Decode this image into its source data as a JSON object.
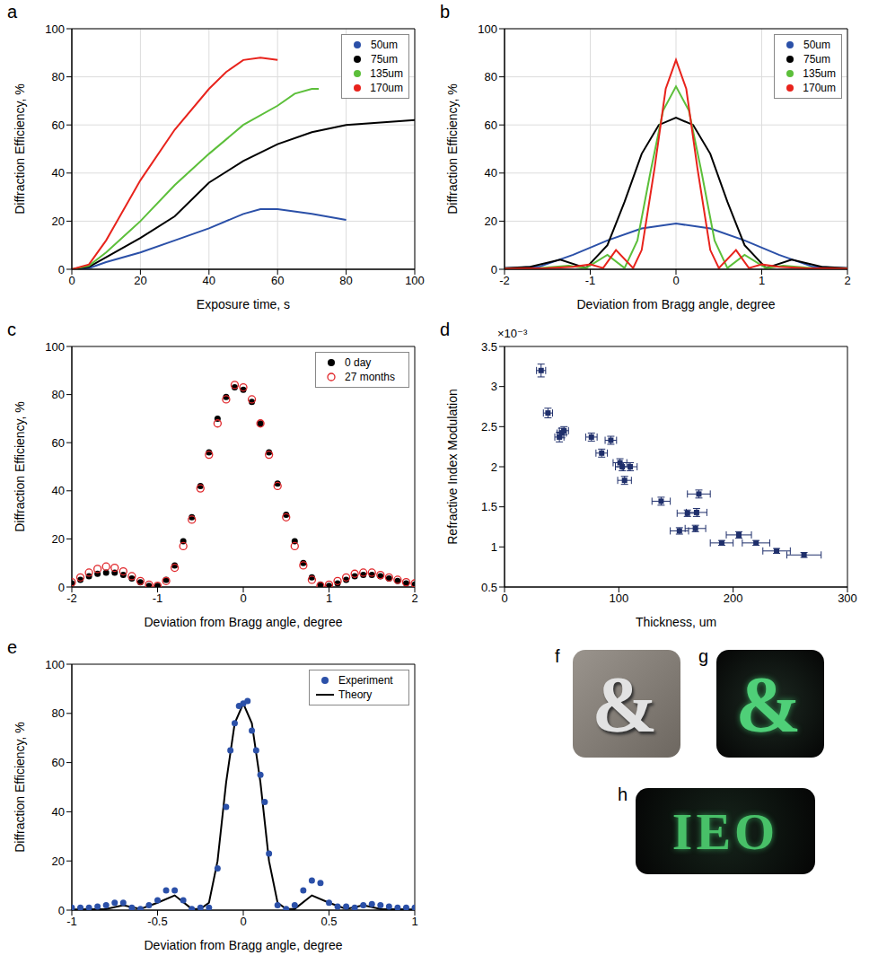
{
  "chart_data": [
    {
      "panel": "a",
      "type": "line",
      "x_label": "Exposure time, s",
      "y_label": "Diffraction Efficiency, %",
      "xlim": [
        0,
        100
      ],
      "xticks": [
        0,
        20,
        40,
        60,
        80,
        100
      ],
      "ylim": [
        0,
        100
      ],
      "yticks": [
        0,
        20,
        40,
        60,
        80,
        100
      ],
      "grid": true,
      "legend": "upper right",
      "series": [
        {
          "name": "50um",
          "color": "#2b50a8",
          "x": [
            0,
            5,
            10,
            20,
            30,
            40,
            50,
            55,
            60,
            70,
            80
          ],
          "values": [
            0,
            0.5,
            3,
            7,
            12,
            17,
            23,
            25,
            25,
            23,
            20.5
          ]
        },
        {
          "name": "75um",
          "color": "#000000",
          "x": [
            0,
            5,
            10,
            20,
            30,
            40,
            50,
            60,
            70,
            80,
            90,
            100
          ],
          "values": [
            0,
            1,
            5,
            13,
            22,
            36,
            45,
            52,
            57,
            60,
            61,
            62
          ]
        },
        {
          "name": "135um",
          "color": "#5cbf3a",
          "x": [
            0,
            5,
            10,
            20,
            30,
            40,
            50,
            60,
            65,
            70,
            72
          ],
          "values": [
            0,
            1.5,
            7,
            20,
            35,
            48,
            60,
            68,
            73,
            75,
            75
          ]
        },
        {
          "name": "170um",
          "color": "#e8231c",
          "x": [
            0,
            5,
            10,
            20,
            30,
            40,
            45,
            50,
            55,
            60
          ],
          "values": [
            0,
            2,
            12,
            37,
            58,
            75,
            82,
            87,
            88,
            87
          ]
        }
      ]
    },
    {
      "panel": "b",
      "type": "line",
      "x_label": "Deviation from Bragg angle, degree",
      "y_label": "Diffraction Efficiency, %",
      "xlim": [
        -2,
        2
      ],
      "xticks": [
        -2,
        -1,
        0,
        1,
        2
      ],
      "ylim": [
        0,
        100
      ],
      "yticks": [
        0,
        20,
        40,
        60,
        80,
        100
      ],
      "grid": true,
      "legend": "upper right",
      "series": [
        {
          "name": "50um",
          "color": "#2b50a8",
          "x": [
            -2,
            -1.6,
            -1.2,
            -0.8,
            -0.4,
            0,
            0.4,
            0.8,
            1.2,
            1.6,
            2
          ],
          "values": [
            0.5,
            1,
            6,
            12,
            17,
            19,
            17,
            12,
            6,
            1,
            0.5
          ]
        },
        {
          "name": "75um",
          "color": "#000000",
          "x": [
            -2,
            -1.7,
            -1.35,
            -1.05,
            -0.8,
            -0.6,
            -0.4,
            -0.2,
            0,
            0.2,
            0.4,
            0.6,
            0.8,
            1.05,
            1.35,
            1.7,
            2
          ],
          "values": [
            0.5,
            1,
            4,
            0.5,
            10,
            28,
            48,
            60,
            63,
            60,
            48,
            28,
            10,
            0.5,
            4,
            1,
            0.5
          ]
        },
        {
          "name": "135um",
          "color": "#5cbf3a",
          "x": [
            -2,
            -1.6,
            -1.25,
            -1.05,
            -0.8,
            -0.6,
            -0.45,
            -0.3,
            -0.15,
            0,
            0.15,
            0.3,
            0.45,
            0.6,
            0.8,
            1.05,
            1.25,
            1.6,
            2
          ],
          "values": [
            0.3,
            0.5,
            1.5,
            0.5,
            6,
            0.5,
            12,
            40,
            66,
            76,
            66,
            40,
            12,
            0.5,
            6,
            0.5,
            1.5,
            0.5,
            0.3
          ]
        },
        {
          "name": "170um",
          "color": "#e8231c",
          "x": [
            -2,
            -1.5,
            -1.2,
            -1,
            -0.85,
            -0.7,
            -0.5,
            -0.4,
            -0.25,
            -0.12,
            0,
            0.12,
            0.25,
            0.4,
            0.5,
            0.7,
            0.85,
            1,
            1.2,
            1.5,
            2
          ],
          "values": [
            0.3,
            0.5,
            1,
            2,
            0.5,
            8,
            0.5,
            8,
            42,
            75,
            87,
            75,
            42,
            8,
            0.5,
            8,
            0.5,
            2,
            1,
            0.5,
            0.3
          ]
        }
      ]
    },
    {
      "panel": "c",
      "type": "scatter",
      "x_label": "Deviation from Bragg angle, degree",
      "y_label": "Diffraction Efficiency, %",
      "xlim": [
        -2,
        2
      ],
      "xticks": [
        -2,
        -1,
        0,
        1,
        2
      ],
      "ylim": [
        0,
        100
      ],
      "yticks": [
        0,
        20,
        40,
        60,
        80,
        100
      ],
      "grid": false,
      "legend": "upper right",
      "series": [
        {
          "name": "0 day",
          "color": "#000000",
          "marker": "circle",
          "x": [
            -2,
            -1.9,
            -1.8,
            -1.7,
            -1.6,
            -1.5,
            -1.4,
            -1.3,
            -1.2,
            -1.1,
            -1,
            -0.9,
            -0.8,
            -0.7,
            -0.6,
            -0.5,
            -0.4,
            -0.3,
            -0.2,
            -0.1,
            0,
            0.1,
            0.2,
            0.3,
            0.4,
            0.5,
            0.6,
            0.7,
            0.8,
            0.9,
            1,
            1.1,
            1.2,
            1.3,
            1.4,
            1.5,
            1.6,
            1.7,
            1.8,
            1.9,
            2
          ],
          "values": [
            1.5,
            3,
            4.5,
            5.5,
            6,
            6,
            5,
            3.5,
            2,
            0.5,
            0.5,
            3,
            9,
            19,
            29,
            42,
            56,
            70,
            79,
            83,
            82,
            77,
            68,
            56,
            43,
            30,
            19,
            10,
            4,
            1,
            0.5,
            1.5,
            3,
            4.5,
            5,
            5,
            4.5,
            3.5,
            2.5,
            1.5,
            1
          ]
        },
        {
          "name": "27 months",
          "color": "#e0262a",
          "marker": "open_circle",
          "x": [
            -2,
            -1.9,
            -1.8,
            -1.7,
            -1.6,
            -1.5,
            -1.4,
            -1.3,
            -1.2,
            -1.1,
            -1,
            -0.9,
            -0.8,
            -0.7,
            -0.6,
            -0.5,
            -0.4,
            -0.3,
            -0.2,
            -0.1,
            0,
            0.1,
            0.2,
            0.3,
            0.4,
            0.5,
            0.6,
            0.7,
            0.8,
            0.9,
            1,
            1.1,
            1.2,
            1.3,
            1.4,
            1.5,
            1.6,
            1.7,
            1.8,
            1.9,
            2
          ],
          "values": [
            2,
            4,
            6,
            7.5,
            8.5,
            8,
            6.5,
            4.5,
            2.5,
            1,
            0.5,
            2.5,
            8,
            17,
            28,
            41,
            55,
            68,
            78,
            84,
            83,
            78,
            68,
            55,
            42,
            29,
            17,
            9,
            3,
            0.5,
            1,
            2.5,
            4,
            5.5,
            6,
            6,
            5,
            4,
            3,
            2,
            1.5
          ]
        }
      ]
    },
    {
      "panel": "d",
      "type": "scatter",
      "x_label": "Thickness, um",
      "y_label": "Refractive Index Modulation",
      "y_multiplier": "×10⁻³",
      "xlim": [
        0,
        300
      ],
      "xticks": [
        0,
        100,
        200,
        300
      ],
      "ylim": [
        0.5,
        3.5
      ],
      "yticks": [
        0.5,
        1,
        1.5,
        2,
        2.5,
        3,
        3.5
      ],
      "grid": false,
      "series": [
        {
          "color": "#1f2f6b",
          "marker": "square",
          "x": [
            32,
            38,
            48,
            50,
            52,
            76,
            85,
            93,
            101,
            103,
            105,
            110,
            137,
            153,
            160,
            167,
            168,
            170,
            190,
            205,
            220,
            238,
            262
          ],
          "values": [
            3.2,
            2.67,
            2.37,
            2.42,
            2.45,
            2.37,
            2.17,
            2.33,
            2.05,
            2.0,
            1.83,
            2.0,
            1.57,
            1.2,
            1.42,
            1.23,
            1.43,
            1.66,
            1.05,
            1.15,
            1.05,
            0.95,
            0.9
          ],
          "x_error": [
            4,
            4,
            4,
            4,
            4,
            5,
            5,
            5,
            6,
            6,
            6,
            6,
            8,
            8,
            9,
            9,
            9,
            10,
            10,
            11,
            12,
            12,
            15
          ],
          "y_error": [
            0.08,
            0.06,
            0.06,
            0.06,
            0.05,
            0.05,
            0.05,
            0.05,
            0.05,
            0.05,
            0.05,
            0.05,
            0.05,
            0.04,
            0.04,
            0.04,
            0.05,
            0.05,
            0.03,
            0.04,
            0.03,
            0.03,
            0.03
          ]
        }
      ]
    },
    {
      "panel": "e",
      "type": "scatter",
      "x_label": "Deviation from Bragg angle, degree",
      "y_label": "Diffraction Efficiency, %",
      "xlim": [
        -1,
        1
      ],
      "xticks": [
        -1,
        -0.5,
        0,
        0.5,
        1
      ],
      "ylim": [
        0,
        100
      ],
      "yticks": [
        0,
        20,
        40,
        60,
        80,
        100
      ],
      "grid": false,
      "legend": "upper right",
      "series": [
        {
          "name": "Experiment",
          "color": "#2b50a8",
          "marker": "circle",
          "x": [
            -1,
            -0.95,
            -0.9,
            -0.85,
            -0.8,
            -0.75,
            -0.7,
            -0.65,
            -0.6,
            -0.55,
            -0.5,
            -0.45,
            -0.4,
            -0.35,
            -0.3,
            -0.25,
            -0.2,
            -0.15,
            -0.1,
            -0.075,
            -0.05,
            -0.025,
            0,
            0.025,
            0.05,
            0.075,
            0.1,
            0.125,
            0.15,
            0.2,
            0.25,
            0.3,
            0.35,
            0.4,
            0.45,
            0.5,
            0.55,
            0.6,
            0.65,
            0.7,
            0.75,
            0.8,
            0.85,
            0.9,
            0.95,
            1
          ],
          "values": [
            1,
            1,
            1,
            1.5,
            2,
            3,
            3,
            1,
            0.5,
            2,
            4,
            8,
            8,
            4,
            0.5,
            1,
            1,
            17,
            42,
            65,
            76,
            83,
            84,
            85,
            73,
            65,
            55,
            44,
            23,
            2,
            0.5,
            2,
            8,
            12,
            11,
            3,
            1.5,
            1.5,
            1,
            2,
            2.5,
            2,
            1.5,
            1,
            1,
            1
          ]
        },
        {
          "name": "Theory",
          "color": "#000000",
          "type": "line",
          "x": [
            -1,
            -0.8,
            -0.7,
            -0.6,
            -0.5,
            -0.4,
            -0.3,
            -0.25,
            -0.2,
            -0.15,
            -0.1,
            -0.05,
            0,
            0.05,
            0.1,
            0.15,
            0.2,
            0.25,
            0.3,
            0.4,
            0.5,
            0.6,
            0.7,
            0.8,
            1
          ],
          "values": [
            0.3,
            0.5,
            2,
            0.5,
            3,
            6,
            0.5,
            0.5,
            3,
            20,
            52,
            76,
            84,
            76,
            52,
            20,
            3,
            0.5,
            0.5,
            6,
            3,
            0.5,
            2,
            0.5,
            0.3
          ]
        }
      ]
    }
  ],
  "photos": [
    {
      "panel": "f",
      "text": "&"
    },
    {
      "panel": "g",
      "text": "&"
    },
    {
      "panel": "h",
      "text": "IEO"
    }
  ]
}
